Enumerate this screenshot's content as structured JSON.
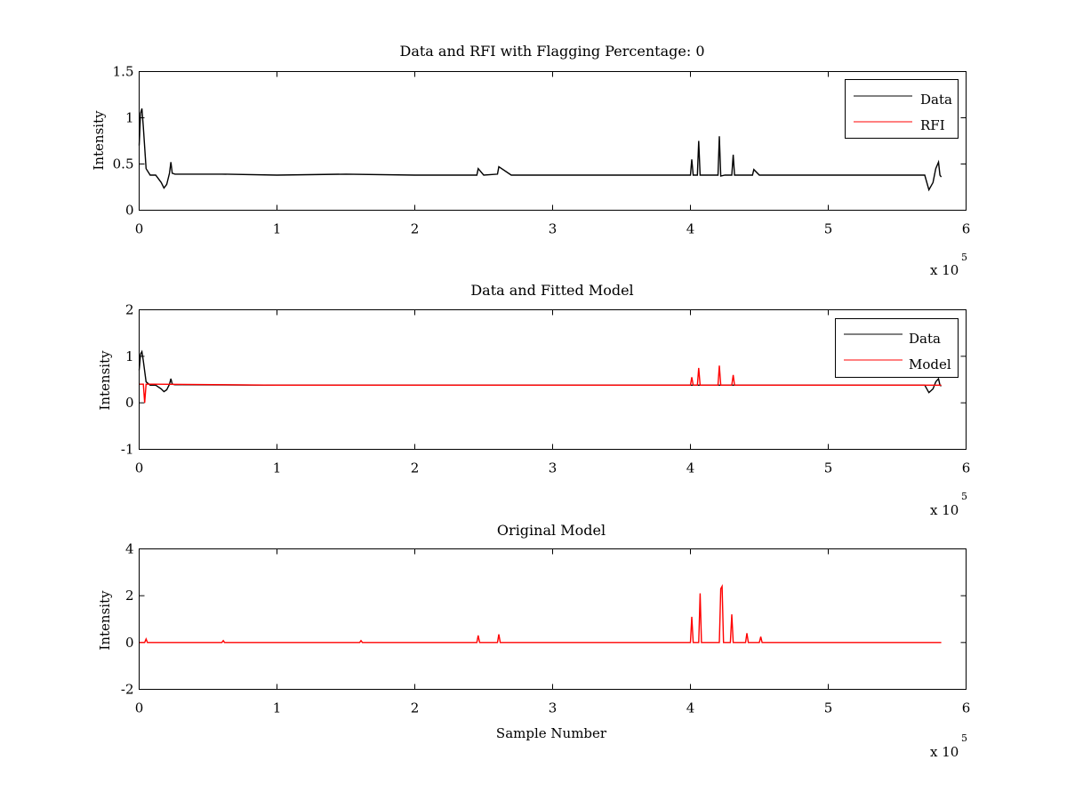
{
  "chart_data": [
    {
      "type": "line",
      "title": "Data and RFI with Flagging Percentage: 0",
      "xlabel": "",
      "ylabel": "Intensity",
      "xlim": [
        0,
        600000
      ],
      "ylim": [
        0,
        1.5
      ],
      "xticks": [
        0,
        1,
        2,
        3,
        4,
        5,
        6
      ],
      "yticks": [
        0,
        0.5,
        1,
        1.5
      ],
      "xtick_labels": [
        "0",
        "1",
        "2",
        "3",
        "4",
        "5",
        "6"
      ],
      "ytick_labels": [
        "0",
        "0.5",
        "1",
        "1.5"
      ],
      "x_multiplier": "x 10",
      "x_multiplier_exp": "5",
      "legend_position": "top-right",
      "series": [
        {
          "name": "Data",
          "color": "#000000",
          "x": [
            0,
            1000,
            2000,
            3000,
            5000,
            8000,
            12000,
            16000,
            18000,
            20000,
            22000,
            23000,
            24000,
            26000,
            30000,
            60000,
            100000,
            150000,
            200000,
            245000,
            246000,
            250000,
            260000,
            261000,
            270000,
            300000,
            350000,
            400000,
            401000,
            402000,
            405000,
            406000,
            407000,
            410000,
            420000,
            421000,
            422000,
            425000,
            430000,
            431000,
            432000,
            440000,
            445000,
            446000,
            450000,
            460000,
            500000,
            550000,
            570000,
            573000,
            576000,
            578000,
            580000,
            581000,
            582000
          ],
          "y": [
            0.7,
            1.05,
            1.1,
            0.9,
            0.45,
            0.38,
            0.38,
            0.3,
            0.24,
            0.28,
            0.4,
            0.52,
            0.4,
            0.39,
            0.39,
            0.39,
            0.38,
            0.39,
            0.38,
            0.38,
            0.45,
            0.38,
            0.39,
            0.47,
            0.38,
            0.38,
            0.38,
            0.38,
            0.55,
            0.38,
            0.38,
            0.75,
            0.38,
            0.38,
            0.38,
            0.8,
            0.37,
            0.38,
            0.38,
            0.6,
            0.38,
            0.38,
            0.38,
            0.44,
            0.38,
            0.38,
            0.38,
            0.38,
            0.38,
            0.22,
            0.3,
            0.45,
            0.52,
            0.38,
            0.36
          ]
        },
        {
          "name": "RFI",
          "color": "#ff0000",
          "x": [],
          "y": []
        }
      ]
    },
    {
      "type": "line",
      "title": "Data and Fitted Model",
      "xlabel": "",
      "ylabel": "Intensity",
      "xlim": [
        0,
        600000
      ],
      "ylim": [
        -1,
        2
      ],
      "xticks": [
        0,
        1,
        2,
        3,
        4,
        5,
        6
      ],
      "yticks": [
        -1,
        0,
        1,
        2
      ],
      "xtick_labels": [
        "0",
        "1",
        "2",
        "3",
        "4",
        "5",
        "6"
      ],
      "ytick_labels": [
        "-1",
        "0",
        "1",
        "2"
      ],
      "x_multiplier": "x 10",
      "x_multiplier_exp": "5",
      "legend_position": "top-right",
      "series": [
        {
          "name": "Data",
          "color": "#000000",
          "x": [
            0,
            1000,
            2000,
            3000,
            5000,
            8000,
            12000,
            16000,
            18000,
            20000,
            22000,
            23000,
            24000,
            26000,
            30000,
            100000,
            200000,
            300000,
            400000,
            500000,
            570000,
            573000,
            576000,
            578000,
            580000,
            581000,
            582000
          ],
          "y": [
            0.7,
            1.05,
            1.1,
            0.9,
            0.45,
            0.38,
            0.38,
            0.3,
            0.24,
            0.28,
            0.4,
            0.52,
            0.4,
            0.39,
            0.39,
            0.38,
            0.38,
            0.38,
            0.38,
            0.38,
            0.38,
            0.22,
            0.3,
            0.45,
            0.52,
            0.38,
            0.36
          ]
        },
        {
          "name": "Model",
          "color": "#ff0000",
          "x": [
            0,
            3000,
            4000,
            5000,
            6000,
            10000,
            100000,
            200000,
            300000,
            400000,
            401000,
            402000,
            405000,
            406000,
            407000,
            420000,
            421000,
            422000,
            430000,
            431000,
            432000,
            500000,
            582000
          ],
          "y": [
            0.4,
            0.4,
            0.0,
            0.4,
            0.4,
            0.4,
            0.38,
            0.38,
            0.38,
            0.38,
            0.55,
            0.38,
            0.38,
            0.75,
            0.38,
            0.38,
            0.8,
            0.38,
            0.38,
            0.6,
            0.38,
            0.38,
            0.38
          ]
        }
      ]
    },
    {
      "type": "line",
      "title": "Original Model",
      "xlabel": "Sample Number",
      "ylabel": "Intensity",
      "xlim": [
        0,
        600000
      ],
      "ylim": [
        -2,
        4
      ],
      "xticks": [
        0,
        1,
        2,
        3,
        4,
        5,
        6
      ],
      "yticks": [
        -2,
        0,
        2,
        4
      ],
      "xtick_labels": [
        "0",
        "1",
        "2",
        "3",
        "4",
        "5",
        "6"
      ],
      "ytick_labels": [
        "-2",
        "0",
        "2",
        "4"
      ],
      "x_multiplier": "x 10",
      "x_multiplier_exp": "5",
      "series": [
        {
          "name": "",
          "color": "#ff0000",
          "x": [
            0,
            4000,
            5000,
            6000,
            60000,
            61000,
            62000,
            160000,
            161000,
            162000,
            245000,
            246000,
            247000,
            260000,
            261000,
            262000,
            400000,
            401000,
            402000,
            406000,
            407000,
            408000,
            421000,
            422000,
            423000,
            424000,
            429000,
            430000,
            431000,
            440000,
            441000,
            442000,
            450000,
            451000,
            452000,
            500000,
            582000
          ],
          "y": [
            0,
            0,
            0.15,
            0,
            0,
            0.08,
            0,
            0,
            0.08,
            0,
            0,
            0.3,
            0,
            0,
            0.35,
            0,
            0,
            1.1,
            0,
            0,
            2.1,
            0,
            0,
            2.3,
            2.4,
            0,
            0,
            1.2,
            0,
            0,
            0.4,
            0,
            0,
            0.25,
            0,
            0,
            0
          ]
        }
      ]
    }
  ]
}
